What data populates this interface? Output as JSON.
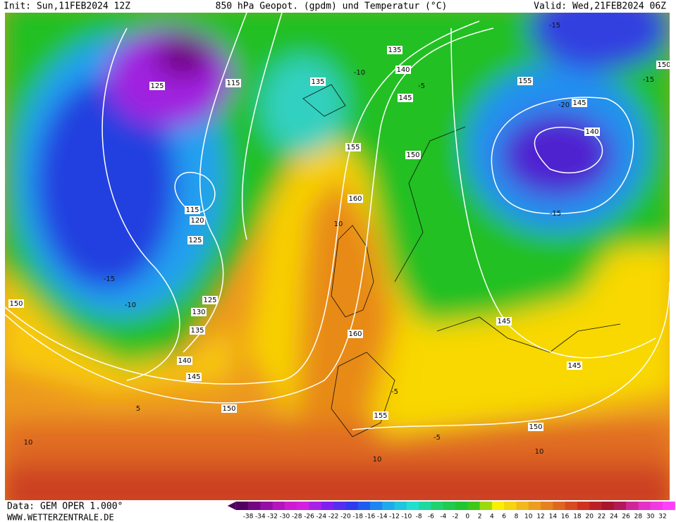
{
  "header": {
    "init": "Init: Sun,11FEB2024 12Z",
    "title": "850 hPa Geopot. (gpdm) und Temperatur (°C)",
    "valid": "Valid: Wed,21FEB2024 06Z"
  },
  "map": {
    "geopotential_labels": [
      135,
      140,
      115,
      125,
      135,
      145,
      155,
      150,
      145,
      140,
      155,
      150,
      160,
      115,
      120,
      125,
      125,
      130,
      135,
      150,
      160,
      145,
      140,
      145,
      145,
      150,
      155,
      150
    ],
    "temperature_labels": [
      -15,
      -10,
      -5,
      -20,
      -15,
      -15,
      -15,
      -10,
      10,
      -5,
      5,
      10,
      -5,
      10,
      10
    ]
  },
  "colorbar": {
    "labels": [
      -38,
      -34,
      -32,
      -30,
      -28,
      -26,
      -24,
      -22,
      -20,
      -18,
      -16,
      -14,
      -12,
      -10,
      -8,
      -6,
      -4,
      -2,
      0,
      2,
      4,
      6,
      8,
      10,
      12,
      14,
      16,
      18,
      20,
      22,
      24,
      26,
      28,
      30,
      32
    ]
  },
  "footer": {
    "data": "Data: GEM OPER 1.000°",
    "site": "WWW.WETTERZENTRALE.DE"
  }
}
